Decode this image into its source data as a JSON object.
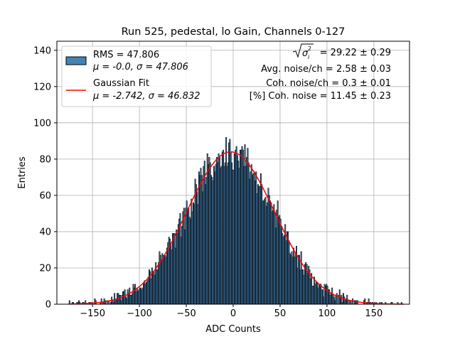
{
  "chart_data": {
    "type": "histogram",
    "title": "Run 525, pedestal, lo Gain, Channels 0-127",
    "xlabel": "ADC Counts",
    "ylabel": "Entries",
    "xlim": [
      -188,
      188
    ],
    "ylim": [
      0,
      145
    ],
    "xticks": [
      -150,
      -100,
      -50,
      0,
      50,
      100,
      150
    ],
    "xtick_labels": [
      "−150",
      "−100",
      "−50",
      "0",
      "50",
      "100",
      "150"
    ],
    "yticks": [
      0,
      20,
      40,
      60,
      80,
      100,
      120,
      140
    ],
    "ytick_labels": [
      "0",
      "20",
      "40",
      "60",
      "80",
      "100",
      "120",
      "140"
    ],
    "grid": true,
    "legend_position": "top-left",
    "histogram": {
      "name": "RMS = 47.806",
      "label_line2": "μ = -0.0, σ = 47.806",
      "bin_range": [
        -176,
        182
      ],
      "bin_width": 1,
      "fill_color": "#4682b4",
      "edge_color": "#000000"
    },
    "fit": {
      "name": "Gaussian Fit",
      "label_line2": "μ = -2.742, σ = 46.832",
      "mu": -2.742,
      "sigma": 46.832,
      "amplitude": 84,
      "color": "#ff0000"
    },
    "annotations": [
      "= 29.22 ± 0.29",
      "Avg. noise/ch = 2.58 ± 0.03",
      "Coh. noise/ch = 0.3 ± 0.01",
      "[%] Coh. noise = 11.45 ± 0.23"
    ]
  }
}
